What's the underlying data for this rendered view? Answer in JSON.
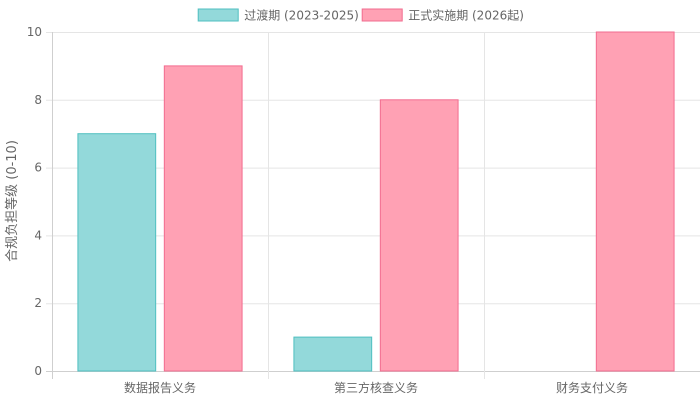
{
  "chart_data": {
    "type": "bar",
    "categories": [
      "数据报告义务",
      "第三方核查义务",
      "财务支付义务"
    ],
    "series": [
      {
        "name": "过渡期 (2023-2025)",
        "values": [
          7,
          1,
          0
        ],
        "fill": "#93d9da",
        "stroke": "#4fbfc0"
      },
      {
        "name": "正式实施期 (2026起)",
        "values": [
          9,
          8,
          10
        ],
        "fill": "#ffa1b4",
        "stroke": "#f26c8f"
      }
    ],
    "ylabel": "合规负担等级 (0-10)",
    "xlabel": "",
    "ylim": [
      0,
      10
    ],
    "yticks": [
      0,
      2,
      4,
      6,
      8,
      10
    ],
    "legend_position": "top-center",
    "grid": true
  }
}
